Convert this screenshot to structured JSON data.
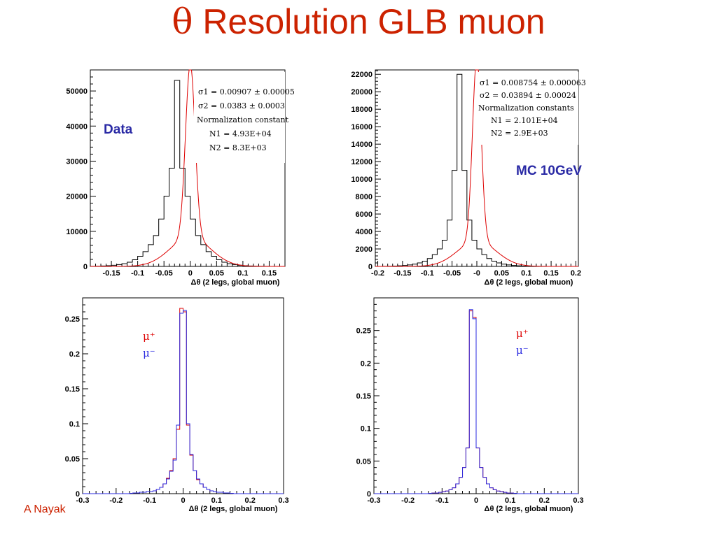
{
  "slide": {
    "title_symbol": "θ",
    "title_text": " Resolution GLB muon",
    "author": "A Nayak",
    "colors": {
      "title": "#cc2200",
      "label": "#2a2aa5"
    }
  },
  "chart_data": [
    {
      "type": "line",
      "xlabel": "Δθ (2 legs, global muon)",
      "label": "Data",
      "xlim": [
        -0.19,
        0.18
      ],
      "ylim": [
        0,
        56000
      ],
      "xticks": [
        -0.15,
        -0.1,
        -0.05,
        0,
        0.05,
        0.1,
        0.15
      ],
      "xtick_labels": [
        "-0.15",
        "-0.1",
        "-0.05",
        "0",
        "0.05",
        "0.1",
        "0.15"
      ],
      "yticks": [
        0,
        10000,
        20000,
        30000,
        40000,
        50000
      ],
      "ytick_labels": [
        "0",
        "10000",
        "20000",
        "30000",
        "40000",
        "50000"
      ],
      "stats": [
        "σ1 = 0.00907 ± 0.00005",
        "σ2 = 0.0383 ± 0.0003",
        "Normalization constant",
        "N1 = 4.93E+04",
        "N2 = 8.3E+03"
      ],
      "fit": {
        "sigma1": 0.00907,
        "sigma2": 0.0383,
        "N1": 49300,
        "N2": 8300
      },
      "histogram": {
        "bin_width": 0.01,
        "bin_edges_start": -0.19,
        "values": [
          30,
          60,
          120,
          200,
          320,
          520,
          780,
          1200,
          1900,
          2900,
          4200,
          6200,
          8800,
          13500,
          20000,
          28000,
          53000,
          28000,
          20000,
          13500,
          8800,
          6200,
          4200,
          2900,
          1900,
          1200,
          780,
          520,
          320,
          200,
          120,
          60,
          30,
          15,
          8,
          4,
          2
        ]
      },
      "series": [
        {
          "values": []
        }
      ],
      "colors": {
        "histogram": "#000000",
        "fit": "#dd0000"
      }
    },
    {
      "type": "line",
      "xlabel": "Δθ (2 legs, global muon)",
      "label": "MC  10GeV",
      "xlim": [
        -0.205,
        0.205
      ],
      "ylim": [
        0,
        22500
      ],
      "xticks": [
        -0.2,
        -0.15,
        -0.1,
        -0.05,
        0,
        0.05,
        0.1,
        0.15,
        0.2
      ],
      "xtick_labels": [
        "-0.2",
        "-0.15",
        "-0.1",
        "-0.05",
        "-0",
        "0.05",
        "0.1",
        "0.15",
        "0.2"
      ],
      "yticks": [
        0,
        2000,
        4000,
        6000,
        8000,
        10000,
        12000,
        14000,
        16000,
        18000,
        20000,
        22000
      ],
      "ytick_labels": [
        "0",
        "2000",
        "4000",
        "6000",
        "8000",
        "10000",
        "12000",
        "14000",
        "16000",
        "18000",
        "20000",
        "22000"
      ],
      "stats": [
        "σ1 = 0.008754 ± 0.000063",
        "σ2 = 0.03894 ± 0.00024",
        "Normalization constants",
        "N1 = 2.101E+04",
        "N2 = 2.9E+03"
      ],
      "fit": {
        "sigma1": 0.008754,
        "sigma2": 0.03894,
        "N1": 21010,
        "N2": 2900
      },
      "histogram": {
        "bin_width": 0.01,
        "bin_edges_start": -0.2,
        "values": [
          5,
          10,
          20,
          40,
          70,
          110,
          170,
          260,
          400,
          600,
          900,
          1350,
          2000,
          3000,
          5300,
          11000,
          22000,
          11000,
          5300,
          3000,
          2000,
          1350,
          900,
          600,
          400,
          260,
          170,
          110,
          70,
          40,
          20,
          10,
          5,
          3,
          2,
          1,
          1,
          0,
          0,
          0
        ]
      },
      "colors": {
        "histogram": "#000000",
        "fit": "#dd0000"
      }
    },
    {
      "type": "line",
      "xlabel": "Δθ (2 legs, global muon)",
      "xlim": [
        -0.3,
        0.3
      ],
      "ylim": [
        0,
        0.28
      ],
      "xticks": [
        -0.3,
        -0.2,
        -0.1,
        0,
        0.1,
        0.2,
        0.3
      ],
      "xtick_labels": [
        "-0.3",
        "-0.2",
        "-0.1",
        "0",
        "0.1",
        "0.2",
        "0.3"
      ],
      "yticks": [
        0,
        0.05,
        0.1,
        0.15,
        0.2,
        0.25
      ],
      "ytick_labels": [
        "0",
        "0.05",
        "0.1",
        "0.15",
        "0.2",
        "0.25"
      ],
      "legend": [
        "μ⁺",
        "μ⁻"
      ],
      "x_start": -0.3,
      "bin_width": 0.01,
      "series": [
        {
          "name": "μ⁺",
          "color": "#dd0000",
          "values": [
            0,
            0,
            0,
            0,
            0,
            0,
            0,
            0,
            0,
            0,
            0,
            0,
            0,
            0,
            0.0005,
            0.001,
            0.001,
            0.002,
            0.002,
            0.003,
            0.003,
            0.004,
            0.006,
            0.009,
            0.014,
            0.022,
            0.033,
            0.05,
            0.092,
            0.265,
            0.26,
            0.098,
            0.055,
            0.033,
            0.02,
            0.014,
            0.009,
            0.006,
            0.004,
            0.003,
            0.002,
            0.002,
            0.001,
            0.001,
            0.0005,
            0,
            0,
            0,
            0,
            0,
            0,
            0,
            0,
            0,
            0,
            0,
            0,
            0,
            0,
            0
          ]
        },
        {
          "name": "μ⁻",
          "color": "#2a2ae0",
          "values": [
            0,
            0,
            0,
            0,
            0,
            0,
            0,
            0,
            0,
            0,
            0,
            0,
            0,
            0,
            0.0005,
            0.001,
            0.001,
            0.002,
            0.002,
            0.003,
            0.003,
            0.004,
            0.006,
            0.009,
            0.014,
            0.021,
            0.032,
            0.048,
            0.098,
            0.258,
            0.262,
            0.1,
            0.056,
            0.033,
            0.021,
            0.014,
            0.009,
            0.006,
            0.004,
            0.003,
            0.002,
            0.002,
            0.001,
            0.001,
            0.0005,
            0,
            0,
            0,
            0,
            0,
            0,
            0,
            0,
            0,
            0,
            0,
            0,
            0,
            0,
            0
          ]
        }
      ]
    },
    {
      "type": "line",
      "xlabel": "Δθ (2 legs, global muon)",
      "xlim": [
        -0.3,
        0.3
      ],
      "ylim": [
        0,
        0.3
      ],
      "xticks": [
        -0.3,
        -0.2,
        -0.1,
        0,
        0.1,
        0.2,
        0.3
      ],
      "xtick_labels": [
        "-0.3",
        "-0.2",
        "-0.1",
        "0",
        "0.1",
        "0.2",
        "0.3"
      ],
      "yticks": [
        0,
        0.05,
        0.1,
        0.15,
        0.2,
        0.25
      ],
      "ytick_labels": [
        "0",
        "0.05",
        "0.1",
        "0.15",
        "0.2",
        "0.25"
      ],
      "legend": [
        "μ⁺",
        "μ⁻"
      ],
      "x_start": -0.3,
      "bin_width": 0.01,
      "series": [
        {
          "name": "μ⁺",
          "color": "#dd0000",
          "values": [
            0,
            0,
            0,
            0,
            0,
            0,
            0,
            0,
            0,
            0,
            0,
            0,
            0,
            0,
            0,
            0,
            0.0005,
            0.001,
            0.001,
            0.002,
            0.003,
            0.004,
            0.006,
            0.009,
            0.015,
            0.025,
            0.04,
            0.07,
            0.28,
            0.27,
            0.07,
            0.04,
            0.025,
            0.015,
            0.009,
            0.006,
            0.004,
            0.003,
            0.002,
            0.001,
            0.001,
            0.0005,
            0,
            0,
            0,
            0,
            0,
            0,
            0,
            0,
            0,
            0,
            0,
            0,
            0,
            0,
            0,
            0,
            0,
            0
          ]
        },
        {
          "name": "μ⁻",
          "color": "#2a2ae0",
          "values": [
            0,
            0,
            0,
            0,
            0,
            0,
            0,
            0,
            0,
            0,
            0,
            0,
            0,
            0,
            0,
            0,
            0.0005,
            0.001,
            0.001,
            0.002,
            0.003,
            0.004,
            0.006,
            0.009,
            0.015,
            0.025,
            0.04,
            0.07,
            0.282,
            0.268,
            0.07,
            0.04,
            0.025,
            0.015,
            0.009,
            0.006,
            0.004,
            0.003,
            0.002,
            0.001,
            0.001,
            0.0005,
            0,
            0,
            0,
            0,
            0,
            0,
            0,
            0,
            0,
            0,
            0,
            0,
            0,
            0,
            0,
            0,
            0,
            0
          ]
        }
      ]
    }
  ]
}
